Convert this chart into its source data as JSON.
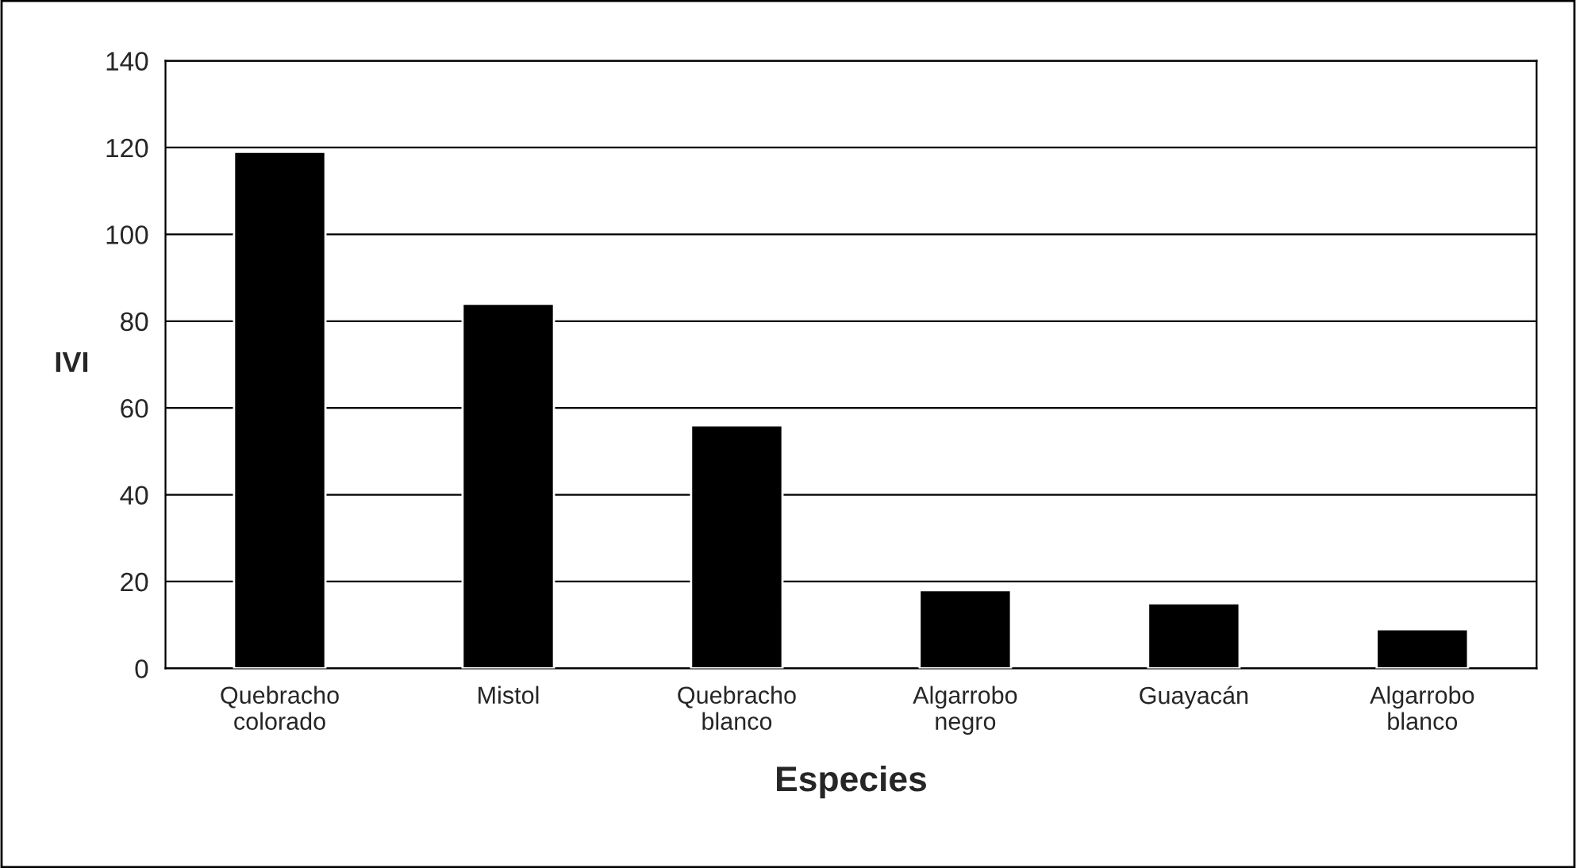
{
  "chart_data": {
    "type": "bar",
    "xlabel": "Especies",
    "ylabel": "IVI",
    "categories": [
      "Quebracho\ncolorado",
      "Mistol",
      "Quebracho\nblanco",
      "Algarrobo\nnegro",
      "Guayacán",
      "Algarrobo\nblanco"
    ],
    "values": [
      119,
      84,
      56,
      18,
      15,
      9
    ],
    "color": "#000000",
    "ylim": [
      0,
      140
    ],
    "yticks": [
      0,
      20,
      40,
      60,
      80,
      100,
      120,
      140
    ],
    "grid": "y",
    "legend": false
  }
}
